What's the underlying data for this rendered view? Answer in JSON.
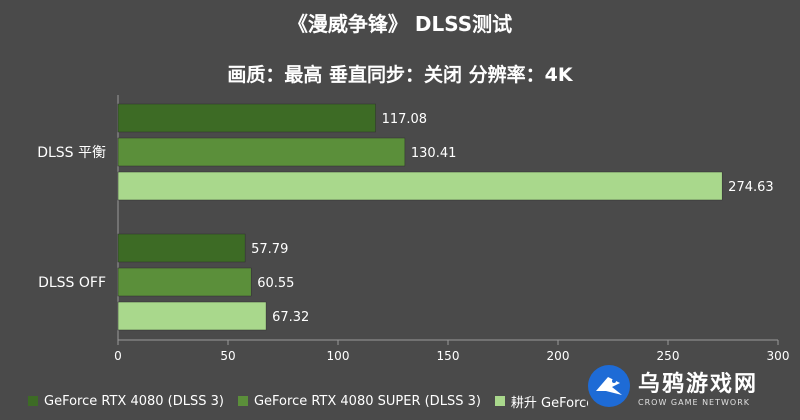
{
  "chart_data": {
    "type": "bar",
    "orientation": "horizontal",
    "title": "《漫威争锋》 DLSS测试",
    "subtitle": "画质：最高  垂直同步：关闭  分辨率：4K",
    "categories": [
      "DLSS 平衡",
      "DLSS  OFF"
    ],
    "series": [
      {
        "name": "GeForce RTX 4080 (DLSS 3)",
        "values": [
          117.08,
          57.79
        ],
        "color": "#3d6b25"
      },
      {
        "name": "GeForce RTX 4080 SUPER (DLSS 3)",
        "values": [
          130.41,
          60.55
        ],
        "color": "#5b8f3a"
      },
      {
        "name": "耕升 GeForce",
        "values": [
          274.63,
          67.32
        ],
        "color": "#a9d88c"
      }
    ],
    "xlim": [
      0,
      300
    ],
    "xticks": [
      0,
      50,
      100,
      150,
      200,
      250,
      300
    ],
    "xtick_labels": [
      "0",
      "50",
      "100",
      "150",
      "200",
      "250",
      "300"
    ],
    "grid": false,
    "legend_position": "bottom-left"
  },
  "watermark": {
    "text": "乌鸦游戏网",
    "subtext": "CROW GAME NETWORK"
  }
}
